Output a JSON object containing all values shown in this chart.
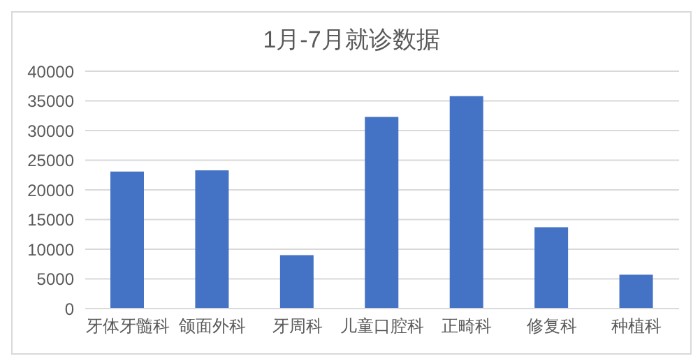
{
  "chart_data": {
    "type": "bar",
    "title": "1月-7月就诊数据",
    "categories": [
      "牙体牙髓科",
      "颌面外科",
      "牙周科",
      "儿童口腔科",
      "正畸科",
      "修复科",
      "种植科"
    ],
    "values": [
      23100,
      23300,
      9000,
      32300,
      35800,
      13700,
      5700
    ],
    "color": "#4472c4",
    "ylim": [
      0,
      40000
    ],
    "yticks": [
      0,
      5000,
      10000,
      15000,
      20000,
      25000,
      30000,
      35000,
      40000
    ],
    "grid": "y"
  }
}
